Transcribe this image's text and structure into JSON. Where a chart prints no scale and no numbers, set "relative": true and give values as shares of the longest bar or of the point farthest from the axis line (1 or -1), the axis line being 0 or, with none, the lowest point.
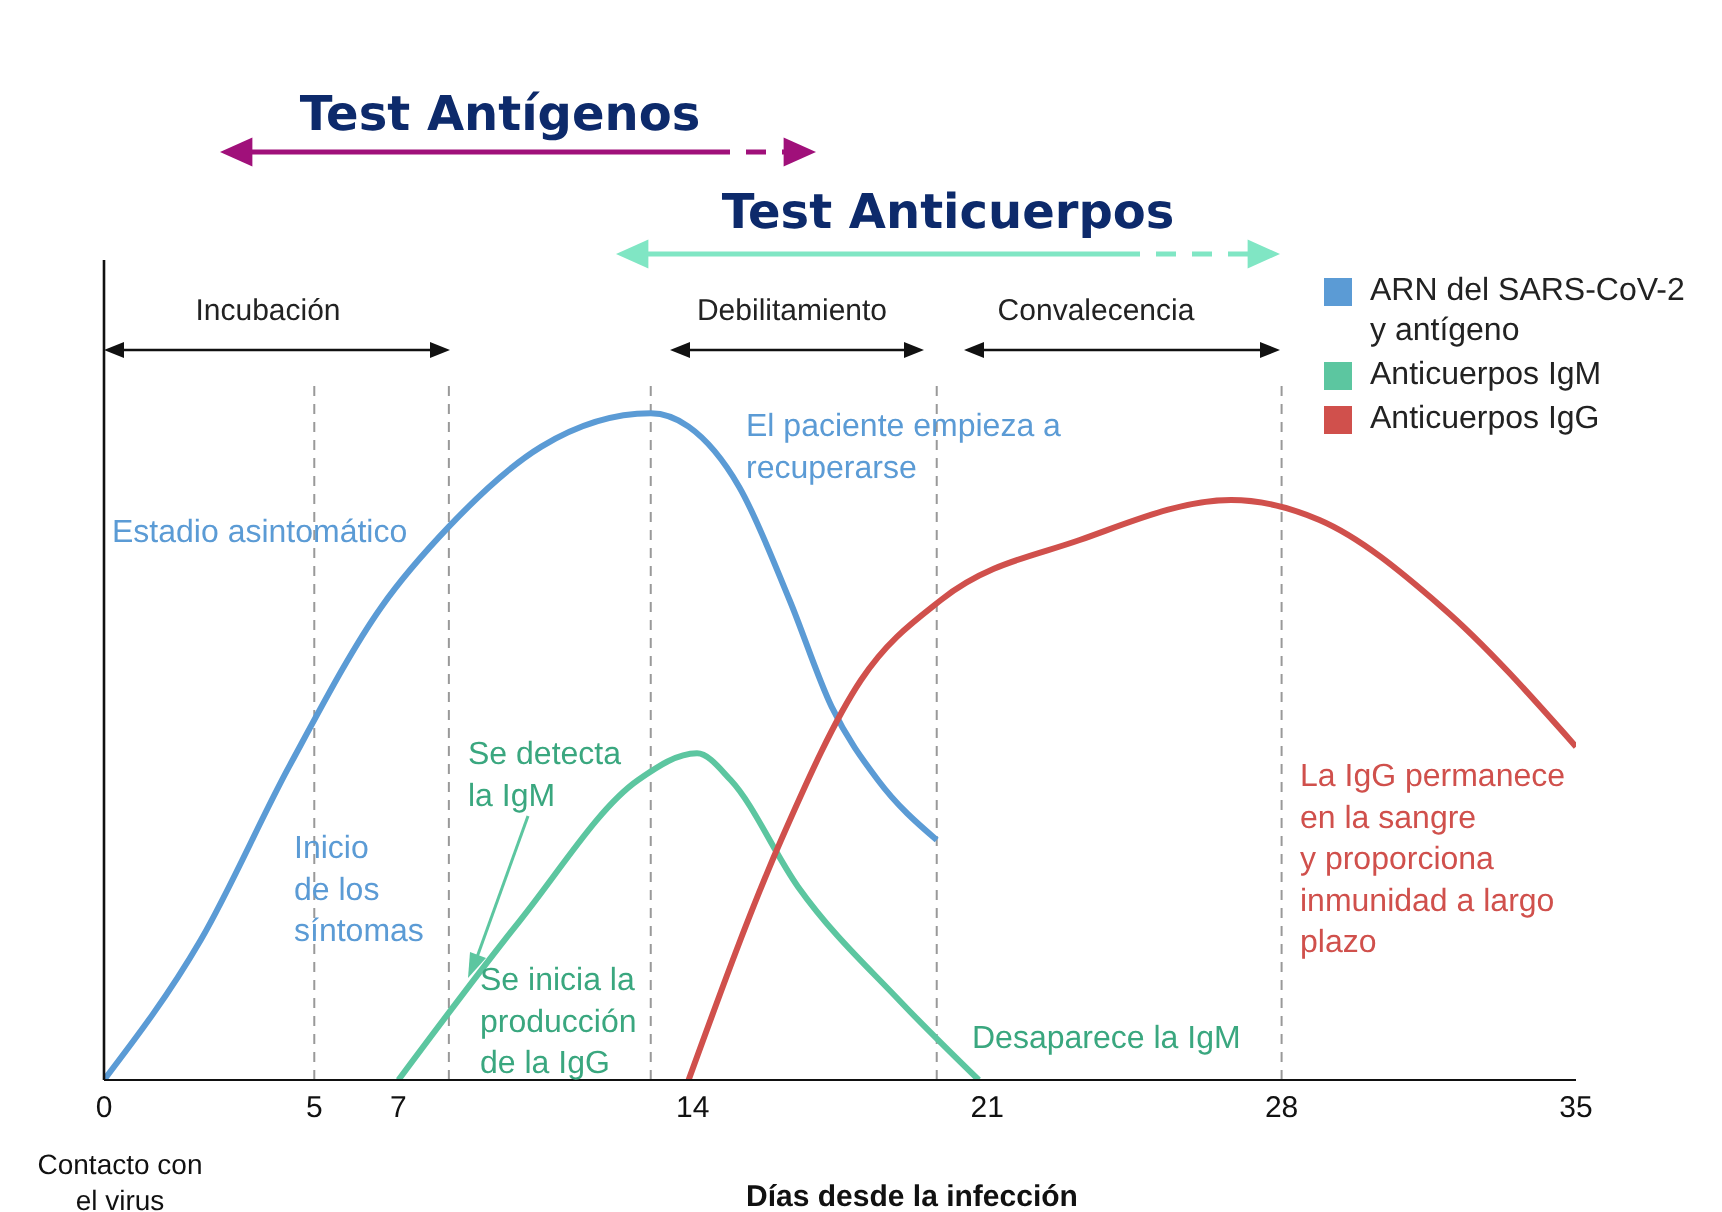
{
  "chart_data": {
    "type": "line",
    "relative": true,
    "xlabel": "Días desde la infección",
    "xlim": [
      0,
      35
    ],
    "xticks": [
      0,
      5,
      7,
      14,
      21,
      28,
      35
    ],
    "legend": "top right",
    "marker": "none",
    "line_style": "solid",
    "series": [
      {
        "name": "ARN del SARS-CoV-2 y antígeno",
        "color": "#5b9bd5",
        "x": [
          0,
          2.3,
          4.4,
          6.6,
          8.2,
          10.4,
          13.0,
          13.9,
          15.1,
          16.3,
          17.3,
          18.4,
          19.8
        ],
        "values": [
          0,
          0.21,
          0.47,
          0.71,
          0.83,
          0.95,
          1.0,
          0.98,
          0.89,
          0.72,
          0.56,
          0.45,
          0.36
        ]
      },
      {
        "name": "Anticuerpos IgM",
        "color": "#5cc6a0",
        "x": [
          7.0,
          9.9,
          12.7,
          14.1,
          14.9,
          16.5,
          18.9,
          20.8
        ],
        "values": [
          0,
          0.24,
          0.45,
          0.49,
          0.45,
          0.29,
          0.12,
          0
        ]
      },
      {
        "name": "Anticuerpos IgG",
        "color": "#d0504c",
        "x": [
          13.9,
          16.1,
          18.0,
          19.9,
          23.2,
          26.8,
          28.9,
          31.8,
          35.0
        ],
        "values": [
          0,
          0.36,
          0.6,
          0.72,
          0.81,
          0.87,
          0.84,
          0.71,
          0.5
        ]
      }
    ],
    "ref_lines": [
      {
        "axis": "x",
        "value": 5,
        "color": "#999999",
        "line_style": "dashed"
      },
      {
        "axis": "x",
        "value": 8.2,
        "color": "#999999",
        "line_style": "dashed"
      },
      {
        "axis": "x",
        "value": 13,
        "color": "#999999",
        "line_style": "dashed"
      },
      {
        "axis": "x",
        "value": 19.8,
        "color": "#999999",
        "line_style": "dashed"
      },
      {
        "axis": "x",
        "value": 28,
        "color": "#999999",
        "line_style": "dashed"
      }
    ],
    "annotations": [
      "Test Antígenos",
      "Test Anticuerpos",
      "Incubación",
      "Debilitamiento",
      "Convalecencia",
      "Estadio asintomático",
      "El paciente empieza a recuperarse",
      "Inicio de los síntomas",
      "Se detecta la IgM",
      "Se inicia la producción de la IgG",
      "Desaparece la IgM",
      "La IgG permanece en la sangre y proporciona inmunidad a largo plazo",
      "Contacto con el virus"
    ]
  }
}
